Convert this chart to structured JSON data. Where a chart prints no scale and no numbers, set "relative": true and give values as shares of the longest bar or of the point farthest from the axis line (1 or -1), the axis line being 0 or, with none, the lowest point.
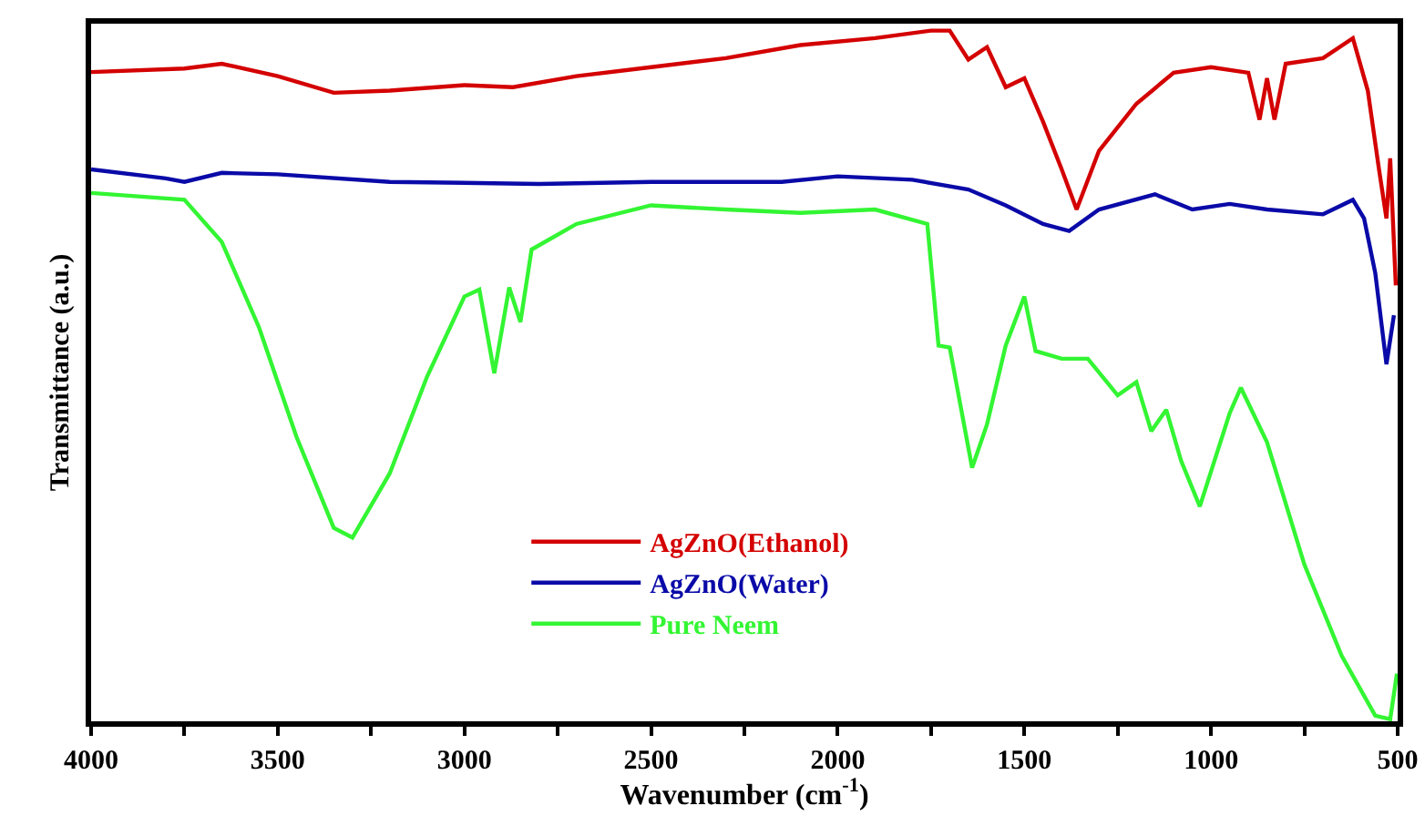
{
  "chart_data": {
    "type": "line",
    "xlabel": "Wavenumber (cm$^{-1}$)",
    "ylabel": "Transmittance (a.u.)",
    "relative": true,
    "xlim": [
      4000,
      500
    ],
    "xticks": [
      4000,
      {
        "value": 3750,
        "label": null
      },
      3500,
      {
        "value": 3250,
        "label": null
      },
      3000,
      {
        "value": 2750,
        "label": null
      },
      2500,
      {
        "value": 2250,
        "label": null
      },
      2000,
      {
        "value": 1750,
        "label": null
      },
      1500,
      {
        "value": 1250,
        "label": null
      },
      1000,
      {
        "value": 750,
        "label": null
      },
      500
    ],
    "grid": false,
    "legend": "bottom",
    "marker": "none",
    "line_style": "solid",
    "series": [
      {
        "name": "AgZnO(Ethanol)",
        "color": "#d40000",
        "x": [
          4000,
          3750,
          3650,
          3500,
          3350,
          3200,
          3000,
          2870,
          2700,
          2500,
          2300,
          2100,
          1900,
          1750,
          1700,
          1650,
          1600,
          1550,
          1500,
          1450,
          1400,
          1360,
          1300,
          1200,
          1100,
          1000,
          900,
          870,
          850,
          830,
          800,
          700,
          620,
          580,
          550,
          530,
          520,
          505
        ],
        "values": [
          0.94,
          0.945,
          0.952,
          0.934,
          0.91,
          0.913,
          0.921,
          0.918,
          0.934,
          0.947,
          0.96,
          0.979,
          0.989,
          1,
          1,
          0.958,
          0.976,
          0.918,
          0.931,
          0.868,
          0.799,
          0.741,
          0.826,
          0.894,
          0.939,
          0.947,
          0.939,
          0.871,
          0.931,
          0.871,
          0.952,
          0.96,
          0.989,
          0.913,
          0.799,
          0.728,
          0.815,
          0.631
        ]
      },
      {
        "name": "AgZnO(Water)",
        "color": "#0a0aa8",
        "x": [
          4000,
          3800,
          3750,
          3650,
          3500,
          3200,
          2800,
          2500,
          2150,
          2000,
          1800,
          1650,
          1550,
          1450,
          1380,
          1300,
          1150,
          1050,
          950,
          850,
          700,
          620,
          590,
          560,
          530,
          510
        ],
        "values": [
          0.799,
          0.786,
          0.781,
          0.794,
          0.792,
          0.781,
          0.778,
          0.781,
          0.781,
          0.789,
          0.784,
          0.77,
          0.747,
          0.72,
          0.71,
          0.741,
          0.763,
          0.741,
          0.749,
          0.741,
          0.734,
          0.755,
          0.728,
          0.649,
          0.517,
          0.588
        ]
      },
      {
        "name": "Pure Neem",
        "color": "#33f533",
        "x": [
          4000,
          3750,
          3650,
          3550,
          3450,
          3350,
          3300,
          3200,
          3100,
          3000,
          2960,
          2920,
          2880,
          2850,
          2820,
          2700,
          2500,
          2300,
          2100,
          1900,
          1760,
          1730,
          1700,
          1640,
          1600,
          1550,
          1500,
          1470,
          1400,
          1330,
          1250,
          1200,
          1160,
          1120,
          1080,
          1030,
          950,
          920,
          850,
          750,
          650,
          560,
          520,
          502
        ],
        "values": [
          0.765,
          0.755,
          0.694,
          0.57,
          0.412,
          0.28,
          0.266,
          0.359,
          0.499,
          0.615,
          0.625,
          0.504,
          0.628,
          0.578,
          0.683,
          0.72,
          0.747,
          0.741,
          0.736,
          0.741,
          0.72,
          0.544,
          0.541,
          0.367,
          0.43,
          0.544,
          0.615,
          0.536,
          0.525,
          0.525,
          0.472,
          0.491,
          0.42,
          0.451,
          0.377,
          0.311,
          0.446,
          0.483,
          0.404,
          0.227,
          0.095,
          0.008,
          0.003,
          0.069
        ]
      }
    ]
  }
}
